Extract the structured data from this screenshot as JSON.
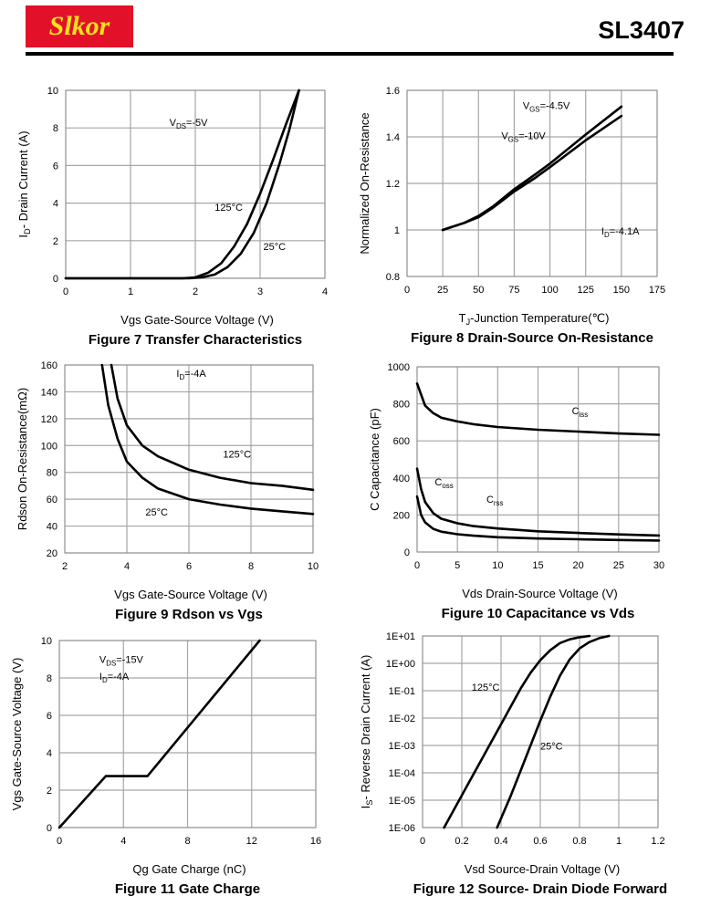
{
  "header": {
    "logo_text": "Slkor",
    "part_number": "SL3407"
  },
  "chart_data": [
    {
      "id": "fig7",
      "type": "line",
      "title": "Figure 7 Transfer Characteristics",
      "xlabel": "Vgs Gate-Source Voltage (V)",
      "ylabel": "I_D- Drain Current (A)",
      "xlim": [
        0,
        4
      ],
      "ylim": [
        0,
        10
      ],
      "grid": true,
      "xticks": [
        0,
        1,
        2,
        3,
        4
      ],
      "yticks": [
        0,
        2,
        4,
        6,
        8,
        10
      ],
      "annotations": [
        {
          "text": "V_DS=-5V",
          "x": 1.6,
          "y": 8.1
        },
        {
          "text": "125°C",
          "x": 2.3,
          "y": 3.6
        },
        {
          "text": "25°C",
          "x": 3.05,
          "y": 1.5
        }
      ],
      "series": [
        {
          "name": "125°C",
          "x": [
            0,
            1.8,
            2.0,
            2.2,
            2.4,
            2.6,
            2.8,
            3.0,
            3.2,
            3.4,
            3.6
          ],
          "y": [
            0,
            0,
            0.05,
            0.3,
            0.8,
            1.7,
            2.9,
            4.5,
            6.3,
            8.2,
            10
          ]
        },
        {
          "name": "25°C",
          "x": [
            0,
            1.9,
            2.1,
            2.3,
            2.5,
            2.7,
            2.9,
            3.1,
            3.3,
            3.45,
            3.6
          ],
          "y": [
            0,
            0,
            0.05,
            0.2,
            0.6,
            1.3,
            2.4,
            4.0,
            6.1,
            7.9,
            10
          ]
        }
      ]
    },
    {
      "id": "fig8",
      "type": "line",
      "title": "Figure 8 Drain-Source On-Resistance",
      "xlabel": "T_J-Junction Temperature(℃)",
      "ylabel": "Normalized On-Resistance",
      "xlim": [
        0,
        175
      ],
      "ylim": [
        0.8,
        1.6
      ],
      "grid": true,
      "xticks": [
        0,
        25,
        50,
        75,
        100,
        125,
        150,
        175
      ],
      "yticks": [
        0.8,
        1,
        1.2,
        1.4,
        1.6
      ],
      "annotations": [
        {
          "text": "V_GS=-4.5V",
          "x": 81,
          "y": 1.52
        },
        {
          "text": "V_GS=-10V",
          "x": 66,
          "y": 1.39
        },
        {
          "text": "I_D=-4.1A",
          "x": 136,
          "y": 0.98
        }
      ],
      "series": [
        {
          "name": "V_GS=-4.5V",
          "x": [
            25,
            40,
            50,
            60,
            75,
            90,
            100,
            125,
            150
          ],
          "y": [
            1.0,
            1.03,
            1.06,
            1.1,
            1.175,
            1.24,
            1.285,
            1.41,
            1.53
          ]
        },
        {
          "name": "V_GS=-10V",
          "x": [
            25,
            40,
            50,
            60,
            75,
            90,
            100,
            125,
            150
          ],
          "y": [
            1.0,
            1.03,
            1.055,
            1.095,
            1.165,
            1.225,
            1.27,
            1.385,
            1.49
          ]
        }
      ]
    },
    {
      "id": "fig9",
      "type": "line",
      "title": "Figure 9 Rdson vs Vgs",
      "xlabel": "Vgs Gate-Source Voltage (V)",
      "ylabel": "Rdson On-Resistance(mΩ)",
      "xlim": [
        2,
        10
      ],
      "ylim": [
        20,
        160
      ],
      "grid": true,
      "xticks": [
        2,
        4,
        6,
        8,
        10
      ],
      "yticks": [
        20,
        40,
        60,
        80,
        100,
        120,
        140,
        160
      ],
      "annotations": [
        {
          "text": "I_D=-4A",
          "x": 5.6,
          "y": 151
        },
        {
          "text": "125°C",
          "x": 7.1,
          "y": 91
        },
        {
          "text": "25°C",
          "x": 4.6,
          "y": 48
        }
      ],
      "series": [
        {
          "name": "125°C",
          "x": [
            3.5,
            3.7,
            4.0,
            4.5,
            5.0,
            6.0,
            7.0,
            8.0,
            9.0,
            10.0
          ],
          "y": [
            160,
            135,
            115,
            100,
            92,
            82,
            76,
            72,
            70,
            67
          ]
        },
        {
          "name": "25°C",
          "x": [
            3.2,
            3.4,
            3.7,
            4.0,
            4.5,
            5.0,
            6.0,
            7.0,
            8.0,
            9.0,
            10.0
          ],
          "y": [
            160,
            130,
            105,
            88,
            76,
            68,
            60,
            56,
            53,
            51,
            49
          ]
        }
      ]
    },
    {
      "id": "fig10",
      "type": "line",
      "title": "Figure 10 Capacitance vs Vds",
      "xlabel": "Vds Drain-Source Voltage (V)",
      "ylabel": "C Capacitance (pF)",
      "xlim": [
        0,
        30
      ],
      "ylim": [
        0,
        1000
      ],
      "grid": true,
      "xticks": [
        0,
        5,
        10,
        15,
        20,
        25,
        30
      ],
      "yticks": [
        0,
        200,
        400,
        600,
        800,
        1000
      ],
      "annotations": [
        {
          "text": "C_iss",
          "x": 19.2,
          "y": 745
        },
        {
          "text": "C_oss",
          "x": 2.2,
          "y": 360
        },
        {
          "text": "C_rss",
          "x": 8.6,
          "y": 265
        }
      ],
      "series": [
        {
          "name": "C_iss",
          "x": [
            0,
            0.5,
            1,
            2,
            3,
            5,
            7,
            10,
            15,
            20,
            25,
            30
          ],
          "y": [
            910,
            850,
            790,
            750,
            725,
            705,
            690,
            675,
            660,
            650,
            640,
            633
          ]
        },
        {
          "name": "C_oss",
          "x": [
            0,
            0.5,
            1,
            2,
            3,
            5,
            7,
            10,
            15,
            20,
            25,
            30
          ],
          "y": [
            450,
            340,
            270,
            210,
            180,
            155,
            140,
            127,
            112,
            103,
            95,
            89
          ]
        },
        {
          "name": "C_rss",
          "x": [
            0,
            0.5,
            1,
            2,
            3,
            5,
            7,
            10,
            15,
            20,
            25,
            30
          ],
          "y": [
            300,
            200,
            160,
            125,
            110,
            96,
            88,
            80,
            73,
            69,
            65,
            62
          ]
        }
      ]
    },
    {
      "id": "fig11",
      "type": "line",
      "title": "Figure 11 Gate Charge",
      "xlabel": "Qg Gate Charge (nC)",
      "ylabel": "Vgs Gate-Source Voltage (V)",
      "xlim": [
        0,
        16
      ],
      "ylim": [
        0,
        10
      ],
      "grid": true,
      "xticks": [
        0,
        4,
        8,
        12,
        16
      ],
      "yticks": [
        0,
        2,
        4,
        6,
        8,
        10
      ],
      "annotations": [
        {
          "text": "V_DS=-15V",
          "x": 2.5,
          "y": 8.8
        },
        {
          "text": "I_D=-4A",
          "x": 2.5,
          "y": 7.9
        }
      ],
      "series": [
        {
          "name": "Vgs",
          "x": [
            0,
            2.9,
            5.5,
            12.5
          ],
          "y": [
            0,
            2.75,
            2.75,
            10
          ]
        }
      ]
    },
    {
      "id": "fig12",
      "type": "line",
      "title": "Figure 12 Source- Drain Diode Forward",
      "xlabel": "Vsd Source-Drain Voltage (V)",
      "ylabel": "I_S- Reverse Drain Current (A)",
      "xlim": [
        0,
        1.2
      ],
      "ylim": [
        1e-06,
        10
      ],
      "yscale": "log",
      "grid": true,
      "xticks": [
        0,
        0.2,
        0.4,
        0.6,
        0.8,
        1,
        1.2
      ],
      "ytick_labels": [
        "1E-06",
        "1E-05",
        "1E-04",
        "1E-03",
        "1E-02",
        "1E-01",
        "1E+00",
        "1E+01"
      ],
      "annotations": [
        {
          "text": "125°C",
          "x": 0.25,
          "y": 0.1
        },
        {
          "text": "25°C",
          "x": 0.6,
          "y": 0.0007
        }
      ],
      "series": [
        {
          "name": "125°C",
          "x": [
            0.11,
            0.2,
            0.3,
            0.4,
            0.5,
            0.55,
            0.6,
            0.65,
            0.7,
            0.75,
            0.8,
            0.85
          ],
          "y": [
            1e-06,
            1.5e-05,
            0.0003,
            0.006,
            0.12,
            0.45,
            1.3,
            3.0,
            5.5,
            7.5,
            9.0,
            10
          ]
        },
        {
          "name": "25°C",
          "x": [
            0.38,
            0.45,
            0.5,
            0.55,
            0.6,
            0.65,
            0.7,
            0.75,
            0.8,
            0.85,
            0.9,
            0.95
          ],
          "y": [
            1e-06,
            1.5e-05,
            0.00012,
            0.001,
            0.008,
            0.06,
            0.35,
            1.4,
            3.5,
            6.0,
            8.3,
            10
          ]
        }
      ]
    }
  ]
}
